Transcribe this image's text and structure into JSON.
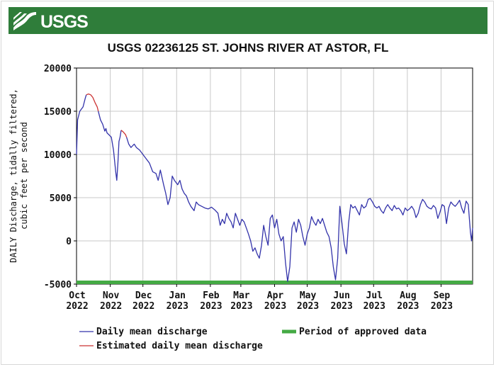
{
  "banner": {
    "logo_text": "USGS"
  },
  "chart_data": {
    "type": "line",
    "title": "USGS 02236125 ST. JOHNS RIVER AT ASTOR, FL",
    "ylabel_lines": [
      "DAILY Discharge, tidally filtered,",
      "cubic feet per second"
    ],
    "ylim": [
      -5000,
      20000
    ],
    "yticks": [
      20000,
      15000,
      10000,
      5000,
      0,
      -5000
    ],
    "xlim": [
      "2022-10-01",
      "2023-09-30"
    ],
    "xticks": [
      {
        "month": "Oct",
        "year": "2022",
        "date": "2022-10-01"
      },
      {
        "month": "Nov",
        "year": "2022",
        "date": "2022-11-01"
      },
      {
        "month": "Dec",
        "year": "2022",
        "date": "2022-12-01"
      },
      {
        "month": "Jan",
        "year": "2023",
        "date": "2023-01-01"
      },
      {
        "month": "Feb",
        "year": "2023",
        "date": "2023-02-01"
      },
      {
        "month": "Mar",
        "year": "2023",
        "date": "2023-03-01"
      },
      {
        "month": "Apr",
        "year": "2023",
        "date": "2023-04-01"
      },
      {
        "month": "May",
        "year": "2023",
        "date": "2023-05-01"
      },
      {
        "month": "Jun",
        "year": "2023",
        "date": "2023-06-01"
      },
      {
        "month": "Jul",
        "year": "2023",
        "date": "2023-07-01"
      },
      {
        "month": "Aug",
        "year": "2023",
        "date": "2023-08-01"
      },
      {
        "month": "Sep",
        "year": "2023",
        "date": "2023-09-01"
      }
    ],
    "grid": true,
    "series": [
      {
        "name": "Daily mean discharge",
        "color": "#3333aa",
        "segments": [
          [
            [
              "2022-10-01",
              10000
            ],
            [
              "2022-10-02",
              14000
            ],
            [
              "2022-10-04",
              15000
            ],
            [
              "2022-10-07",
              15500
            ],
            [
              "2022-10-09",
              16500
            ],
            [
              "2022-10-10",
              16900
            ]
          ],
          [
            [
              "2022-10-21",
              15000
            ],
            [
              "2022-10-23",
              14000
            ],
            [
              "2022-10-25",
              13500
            ],
            [
              "2022-10-27",
              12700
            ],
            [
              "2022-10-28",
              13000
            ],
            [
              "2022-10-29",
              12500
            ],
            [
              "2022-11-02",
              12000
            ],
            [
              "2022-11-04",
              10500
            ],
            [
              "2022-11-06",
              8000
            ],
            [
              "2022-11-07",
              7000
            ],
            [
              "2022-11-08",
              9000
            ],
            [
              "2022-11-09",
              11500
            ],
            [
              "2022-11-10",
              12000
            ],
            [
              "2022-11-11",
              12800
            ]
          ],
          [
            [
              "2022-11-16",
              12000
            ],
            [
              "2022-11-18",
              11200
            ],
            [
              "2022-11-20",
              10800
            ],
            [
              "2022-11-23",
              11200
            ],
            [
              "2022-11-25",
              10800
            ],
            [
              "2022-11-28",
              10500
            ],
            [
              "2022-12-01",
              10000
            ],
            [
              "2022-12-04",
              9500
            ],
            [
              "2022-12-07",
              9000
            ],
            [
              "2022-12-10",
              8000
            ],
            [
              "2022-12-13",
              7800
            ],
            [
              "2022-12-15",
              7000
            ],
            [
              "2022-12-17",
              8200
            ],
            [
              "2022-12-20",
              6500
            ],
            [
              "2022-12-22",
              5500
            ],
            [
              "2022-12-24",
              4200
            ],
            [
              "2022-12-26",
              5000
            ],
            [
              "2022-12-28",
              7500
            ],
            [
              "2022-12-30",
              7000
            ],
            [
              "2023-01-02",
              6500
            ],
            [
              "2023-01-04",
              7000
            ],
            [
              "2023-01-06",
              6000
            ],
            [
              "2023-01-08",
              5500
            ],
            [
              "2023-01-10",
              5200
            ],
            [
              "2023-01-12",
              4500
            ],
            [
              "2023-01-14",
              4000
            ],
            [
              "2023-01-17",
              3500
            ],
            [
              "2023-01-19",
              4500
            ],
            [
              "2023-01-21",
              4200
            ],
            [
              "2023-01-24",
              4000
            ],
            [
              "2023-01-27",
              3800
            ],
            [
              "2023-01-30",
              3700
            ],
            [
              "2023-02-02",
              3900
            ],
            [
              "2023-02-05",
              3600
            ],
            [
              "2023-02-08",
              3200
            ],
            [
              "2023-02-10",
              1800
            ],
            [
              "2023-02-12",
              2500
            ],
            [
              "2023-02-14",
              2000
            ],
            [
              "2023-02-16",
              3200
            ],
            [
              "2023-02-18",
              2600
            ],
            [
              "2023-02-20",
              2200
            ],
            [
              "2023-02-22",
              1500
            ],
            [
              "2023-02-24",
              3200
            ],
            [
              "2023-02-26",
              2500
            ],
            [
              "2023-02-28",
              1800
            ],
            [
              "2023-03-02",
              2500
            ],
            [
              "2023-03-04",
              2200
            ],
            [
              "2023-03-06",
              1500
            ],
            [
              "2023-03-08",
              800
            ],
            [
              "2023-03-10",
              0
            ],
            [
              "2023-03-12",
              -1200
            ],
            [
              "2023-03-14",
              -800
            ],
            [
              "2023-03-16",
              -1500
            ],
            [
              "2023-03-18",
              -2000
            ],
            [
              "2023-03-20",
              -500
            ],
            [
              "2023-03-22",
              1800
            ],
            [
              "2023-03-24",
              500
            ],
            [
              "2023-03-26",
              -500
            ],
            [
              "2023-03-28",
              2600
            ],
            [
              "2023-03-30",
              3000
            ],
            [
              "2023-04-01",
              1500
            ],
            [
              "2023-04-03",
              2500
            ],
            [
              "2023-04-05",
              800
            ],
            [
              "2023-04-07",
              0
            ],
            [
              "2023-04-09",
              500
            ],
            [
              "2023-04-11",
              -2500
            ],
            [
              "2023-04-13",
              -4700
            ],
            [
              "2023-04-15",
              -3000
            ],
            [
              "2023-04-17",
              1500
            ],
            [
              "2023-04-19",
              2200
            ],
            [
              "2023-04-21",
              1000
            ],
            [
              "2023-04-23",
              2500
            ],
            [
              "2023-04-25",
              1800
            ],
            [
              "2023-04-27",
              500
            ],
            [
              "2023-04-29",
              -500
            ],
            [
              "2023-05-01",
              800
            ],
            [
              "2023-05-03",
              1500
            ],
            [
              "2023-05-05",
              2800
            ],
            [
              "2023-05-07",
              2200
            ],
            [
              "2023-05-09",
              1800
            ],
            [
              "2023-05-11",
              2500
            ],
            [
              "2023-05-13",
              2000
            ],
            [
              "2023-05-15",
              2600
            ],
            [
              "2023-05-17",
              1800
            ],
            [
              "2023-05-19",
              1000
            ],
            [
              "2023-05-21",
              500
            ],
            [
              "2023-05-23",
              -800
            ],
            [
              "2023-05-25",
              -3000
            ],
            [
              "2023-05-27",
              -4500
            ],
            [
              "2023-05-29",
              -2000
            ],
            [
              "2023-05-31",
              4000
            ],
            [
              "2023-06-02",
              2000
            ],
            [
              "2023-06-04",
              -300
            ],
            [
              "2023-06-06",
              -1500
            ],
            [
              "2023-06-08",
              2000
            ],
            [
              "2023-06-10",
              4200
            ],
            [
              "2023-06-12",
              3800
            ],
            [
              "2023-06-14",
              4000
            ],
            [
              "2023-06-16",
              3500
            ],
            [
              "2023-06-18",
              3000
            ],
            [
              "2023-06-20",
              4200
            ],
            [
              "2023-06-22",
              3800
            ],
            [
              "2023-06-24",
              4000
            ],
            [
              "2023-06-26",
              4800
            ],
            [
              "2023-06-28",
              4900
            ],
            [
              "2023-06-30",
              4500
            ],
            [
              "2023-07-02",
              4000
            ],
            [
              "2023-07-04",
              3800
            ],
            [
              "2023-07-06",
              4000
            ],
            [
              "2023-07-08",
              3500
            ],
            [
              "2023-07-10",
              3200
            ],
            [
              "2023-07-12",
              3800
            ],
            [
              "2023-07-14",
              4200
            ],
            [
              "2023-07-16",
              3800
            ],
            [
              "2023-07-18",
              3500
            ],
            [
              "2023-07-20",
              4100
            ],
            [
              "2023-07-22",
              3700
            ],
            [
              "2023-07-24",
              3800
            ],
            [
              "2023-07-26",
              3500
            ],
            [
              "2023-07-28",
              3000
            ],
            [
              "2023-07-30",
              3800
            ],
            [
              "2023-08-01",
              3500
            ],
            [
              "2023-08-03",
              3700
            ],
            [
              "2023-08-05",
              4000
            ],
            [
              "2023-08-07",
              3600
            ],
            [
              "2023-08-09",
              2700
            ],
            [
              "2023-08-11",
              3200
            ],
            [
              "2023-08-13",
              4200
            ],
            [
              "2023-08-15",
              4800
            ],
            [
              "2023-08-17",
              4500
            ],
            [
              "2023-08-19",
              4000
            ],
            [
              "2023-08-21",
              3800
            ],
            [
              "2023-08-23",
              3700
            ],
            [
              "2023-08-25",
              4100
            ],
            [
              "2023-08-27",
              3800
            ],
            [
              "2023-08-29",
              2600
            ],
            [
              "2023-08-31",
              3300
            ],
            [
              "2023-09-02",
              4200
            ],
            [
              "2023-09-04",
              4000
            ],
            [
              "2023-09-06",
              2000
            ],
            [
              "2023-09-08",
              3800
            ],
            [
              "2023-09-10",
              4500
            ],
            [
              "2023-09-12",
              4200
            ],
            [
              "2023-09-14",
              4000
            ],
            [
              "2023-09-16",
              4300
            ],
            [
              "2023-09-18",
              4700
            ],
            [
              "2023-09-20",
              3800
            ],
            [
              "2023-09-22",
              3200
            ],
            [
              "2023-09-24",
              4600
            ],
            [
              "2023-09-26",
              4200
            ],
            [
              "2023-09-28",
              1000
            ],
            [
              "2023-09-29",
              0
            ],
            [
              "2023-09-30",
              1500
            ]
          ]
        ]
      },
      {
        "name": "Estimated daily mean discharge",
        "color": "#cc3333",
        "segments": [
          [
            [
              "2022-10-10",
              16900
            ],
            [
              "2022-10-12",
              17000
            ],
            [
              "2022-10-14",
              16900
            ],
            [
              "2022-10-16",
              16600
            ],
            [
              "2022-10-18",
              16000
            ],
            [
              "2022-10-20",
              15500
            ],
            [
              "2022-10-21",
              15000
            ]
          ],
          [
            [
              "2022-11-11",
              12800
            ],
            [
              "2022-11-13",
              12600
            ],
            [
              "2022-11-15",
              12300
            ],
            [
              "2022-11-16",
              12000
            ]
          ]
        ]
      }
    ],
    "approved_period": {
      "name": "Period of approved data",
      "color": "#44aa44",
      "value": -4800,
      "start": "2022-10-01",
      "end": "2023-09-30"
    }
  }
}
